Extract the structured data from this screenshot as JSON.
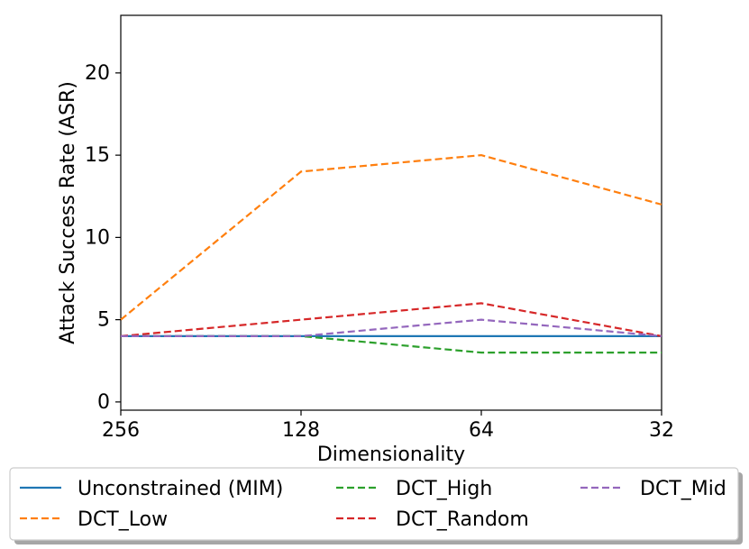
{
  "chart_data": {
    "type": "line",
    "title": "",
    "xlabel": "Dimensionality",
    "ylabel": "Attack Success Rate (ASR)",
    "categories": [
      "256",
      "128",
      "64",
      "32"
    ],
    "ylim": [
      -0.5,
      23.5
    ],
    "yticks": [
      "0",
      "5",
      "10",
      "15",
      "20"
    ],
    "grid": false,
    "legend_position": "bottom",
    "series": [
      {
        "name": "Unconstrained (MIM)",
        "values": [
          4,
          4,
          4,
          4
        ],
        "color": "#1f77b4",
        "style": "solid"
      },
      {
        "name": "DCT_Low",
        "values": [
          5,
          14,
          15,
          12
        ],
        "color": "#ff7f0e",
        "style": "dashed"
      },
      {
        "name": "DCT_High",
        "values": [
          4,
          4,
          3,
          3
        ],
        "color": "#2ca02c",
        "style": "dashed"
      },
      {
        "name": "DCT_Random",
        "values": [
          4,
          5,
          6,
          4
        ],
        "color": "#d62728",
        "style": "dashed"
      },
      {
        "name": "DCT_Mid",
        "values": [
          4,
          4,
          5,
          4
        ],
        "color": "#9467bd",
        "style": "dashed"
      }
    ]
  }
}
